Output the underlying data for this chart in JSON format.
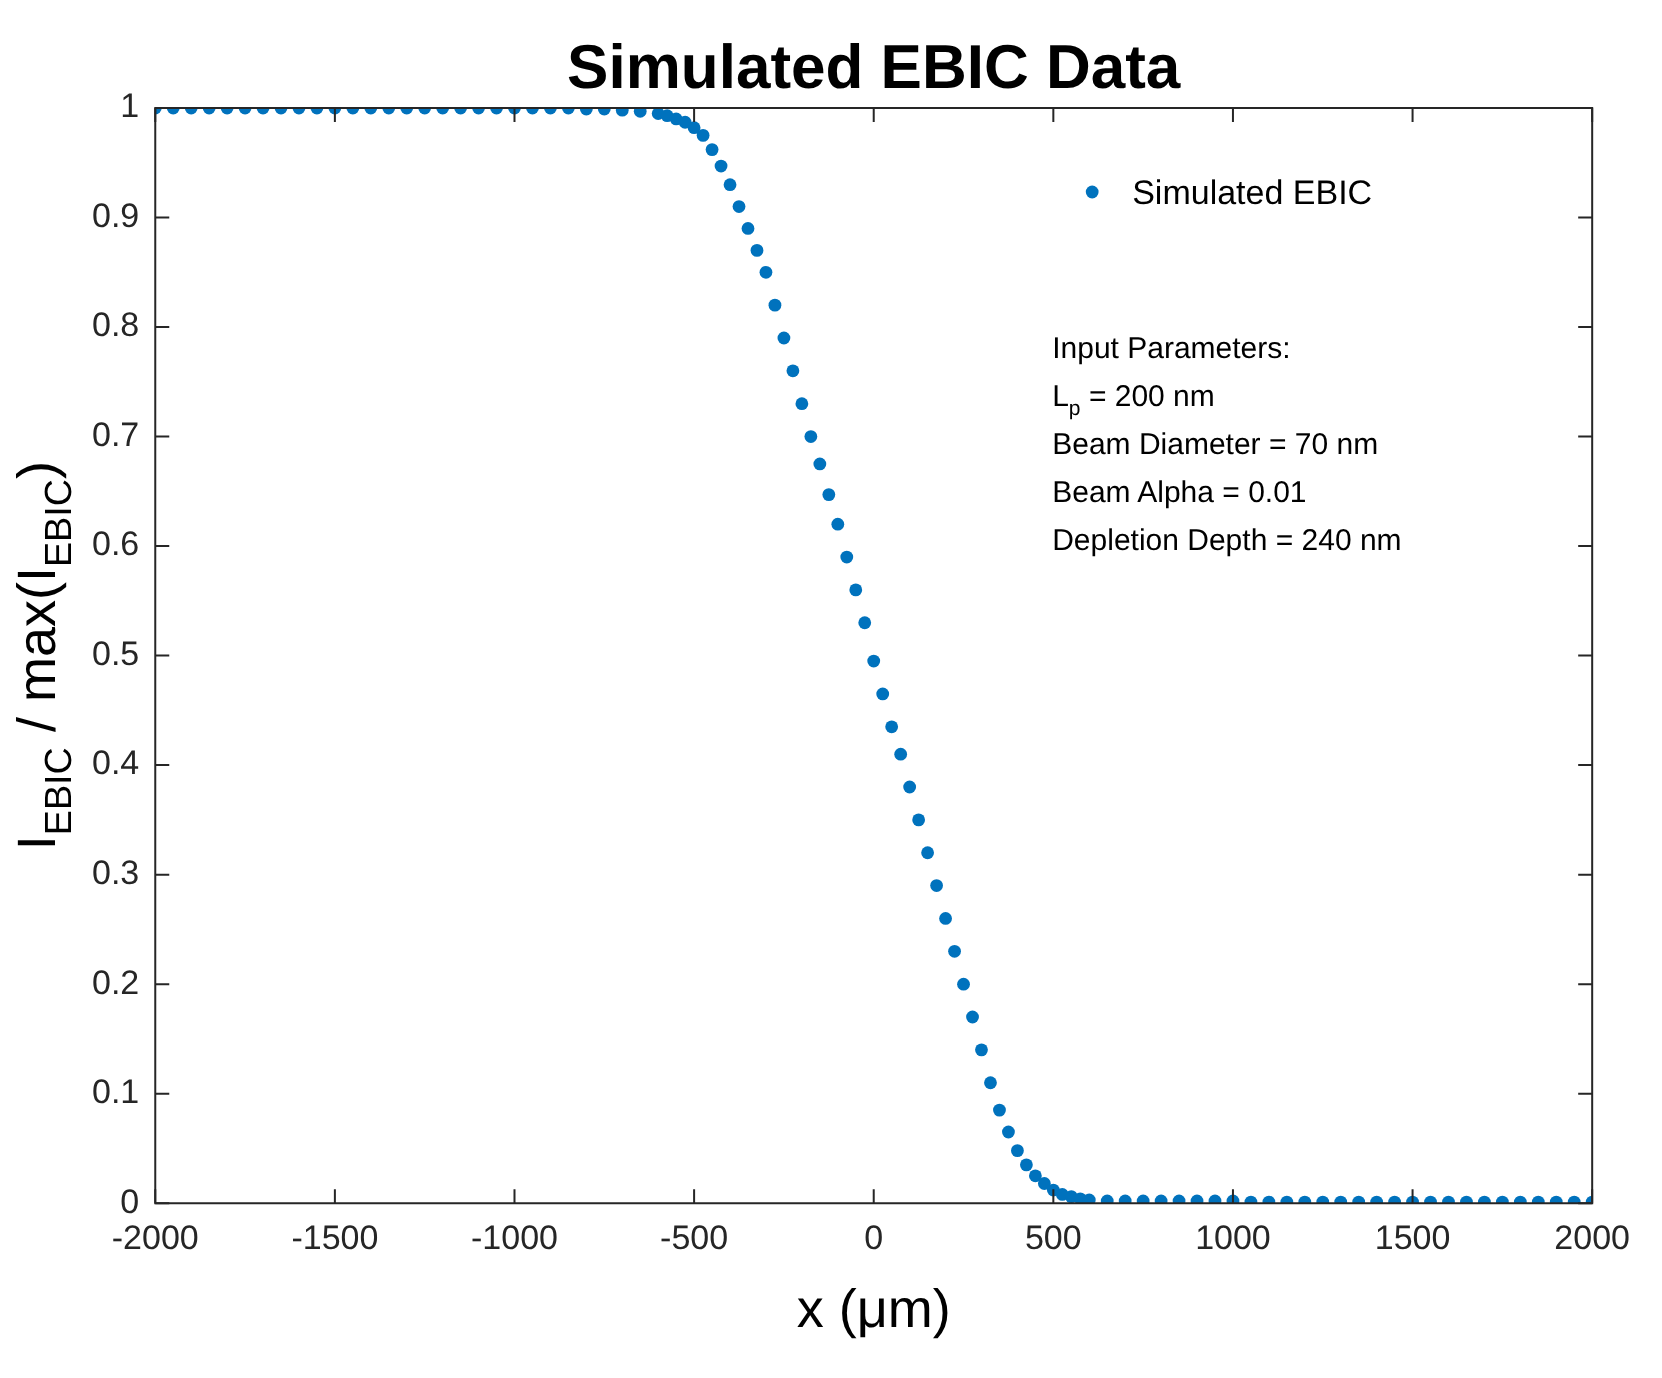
{
  "chart_data": {
    "type": "scatter",
    "title": "Simulated EBIC Data",
    "xlabel": "x (μm)",
    "ylabel": "I$_{EBIC}$ / max(I$_{EBIC}$)",
    "x": [
      -2000,
      -1950,
      -1900,
      -1850,
      -1800,
      -1750,
      -1700,
      -1650,
      -1600,
      -1550,
      -1500,
      -1450,
      -1400,
      -1350,
      -1300,
      -1250,
      -1200,
      -1150,
      -1100,
      -1050,
      -1000,
      -950,
      -900,
      -850,
      -800,
      -750,
      -700,
      -650,
      -600,
      -575,
      -550,
      -525,
      -500,
      -475,
      -450,
      -425,
      -400,
      -375,
      -350,
      -325,
      -300,
      -275,
      -250,
      -225,
      -200,
      -175,
      -150,
      -125,
      -100,
      -75,
      -50,
      -25,
      0,
      25,
      50,
      75,
      100,
      125,
      150,
      175,
      200,
      225,
      250,
      275,
      300,
      325,
      350,
      375,
      400,
      425,
      450,
      475,
      500,
      525,
      550,
      575,
      600,
      650,
      700,
      750,
      800,
      850,
      900,
      950,
      1000,
      1050,
      1100,
      1150,
      1200,
      1250,
      1300,
      1350,
      1400,
      1450,
      1500,
      1550,
      1600,
      1650,
      1700,
      1750,
      1800,
      1850,
      1900,
      1950,
      2000
    ],
    "series": [
      {
        "name": "Simulated EBIC",
        "color": "#0072bd",
        "marker": "circle",
        "values": [
          1,
          1,
          1,
          1,
          1,
          1,
          1,
          1,
          1,
          1,
          1,
          1,
          1,
          1,
          1,
          1,
          1,
          1,
          1,
          1,
          1,
          1,
          1,
          1,
          0.999,
          0.999,
          0.998,
          0.997,
          0.995,
          0.993,
          0.99,
          0.987,
          0.982,
          0.975,
          0.962,
          0.947,
          0.93,
          0.91,
          0.89,
          0.87,
          0.85,
          0.82,
          0.79,
          0.76,
          0.73,
          0.7,
          0.675,
          0.647,
          0.62,
          0.59,
          0.56,
          0.53,
          0.495,
          0.465,
          0.435,
          0.41,
          0.38,
          0.35,
          0.32,
          0.29,
          0.26,
          0.23,
          0.2,
          0.17,
          0.14,
          0.11,
          0.085,
          0.065,
          0.048,
          0.035,
          0.025,
          0.018,
          0.012,
          0.008,
          0.006,
          0.004,
          0.003,
          0.002,
          0.002,
          0.002,
          0.002,
          0.002,
          0.002,
          0.002,
          0.002,
          0.001,
          0.001,
          0.001,
          0.001,
          0.001,
          0.001,
          0.001,
          0.001,
          0.001,
          0.001,
          0.001,
          0.001,
          0.001,
          0.001,
          0.001,
          0.001,
          0.001,
          0.001,
          0.001,
          0.001
        ]
      }
    ],
    "xlim": [
      -2000,
      2000
    ],
    "xticks": [
      -2000,
      -1500,
      -1000,
      -500,
      0,
      500,
      1000,
      1500,
      2000
    ],
    "ylim": [
      0,
      1
    ],
    "yticks": [
      0,
      0.1,
      0.2,
      0.3,
      0.4,
      0.5,
      0.6,
      0.7,
      0.8,
      0.9,
      1
    ],
    "grid": false,
    "legend": "top right",
    "annotations": [
      "Input Parameters:",
      "L$_{p}$ = 200 nm",
      "Beam Diameter = 70 nm",
      "Beam Alpha = 0.01",
      "Depletion Depth = 240 nm"
    ]
  }
}
